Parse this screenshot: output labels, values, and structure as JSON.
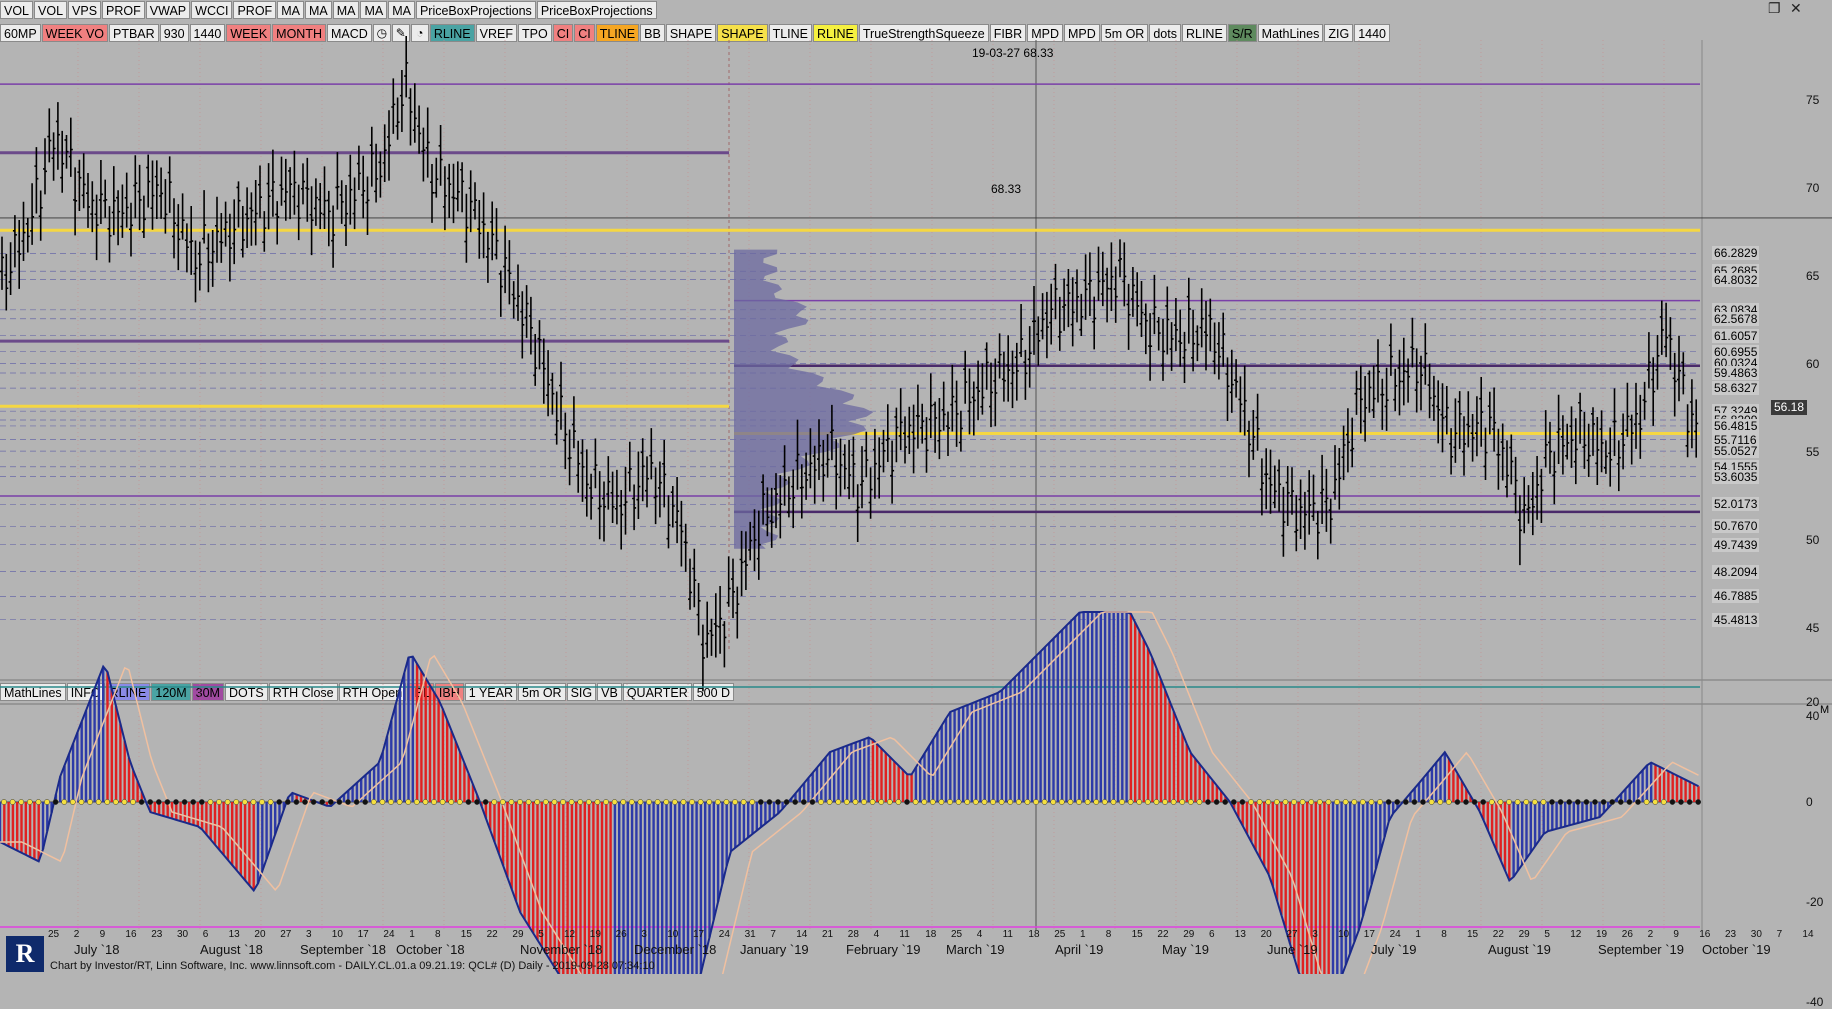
{
  "toolbar_top": [
    {
      "label": "VOL",
      "color": "#ececec"
    },
    {
      "label": "VOL",
      "color": "#ececec"
    },
    {
      "label": "VPS",
      "color": "#ececec"
    },
    {
      "label": "PROF",
      "color": "#ececec"
    },
    {
      "label": "VWAP",
      "color": "#ececec"
    },
    {
      "label": "WCCI",
      "color": "#ececec"
    },
    {
      "label": "PROF",
      "color": "#ececec"
    },
    {
      "label": "MA",
      "color": "#ececec"
    },
    {
      "label": "MA",
      "color": "#ececec"
    },
    {
      "label": "MA",
      "color": "#ececec"
    },
    {
      "label": "MA",
      "color": "#ececec"
    },
    {
      "label": "MA",
      "color": "#ececec"
    },
    {
      "label": "PriceBoxProjections",
      "color": "#ececec"
    },
    {
      "label": "PriceBoxProjections",
      "color": "#ececec"
    }
  ],
  "toolbar_second": [
    {
      "label": "60MP",
      "color": "#ececec"
    },
    {
      "label": "WEEK VO",
      "color": "#f08080"
    },
    {
      "label": "PTBAR",
      "color": "#ececec"
    },
    {
      "label": "930",
      "color": "#ececec"
    },
    {
      "label": "1440",
      "color": "#ececec"
    },
    {
      "label": "WEEK",
      "color": "#f08080"
    },
    {
      "label": "MONTH",
      "color": "#f08080"
    },
    {
      "label": "MACD",
      "color": "#ececec"
    },
    {
      "icon": "clock-icon",
      "glyph": "◷",
      "color": "#ececec"
    },
    {
      "icon": "pencil-icon",
      "glyph": "✎",
      "color": "#ececec"
    },
    {
      "icon": "globe-icon",
      "glyph": "◔",
      "color": "#ececec"
    },
    {
      "label": "RLINE",
      "color": "#4aa3a3"
    },
    {
      "label": "VREF",
      "color": "#ececec"
    },
    {
      "label": "TPO",
      "color": "#ececec"
    },
    {
      "label": "CI",
      "color": "#f08080"
    },
    {
      "label": "CI",
      "color": "#f08080"
    },
    {
      "label": "TLINE",
      "color": "#f5a623"
    },
    {
      "label": "BB",
      "color": "#ececec"
    },
    {
      "label": "SHAPE",
      "color": "#ececec"
    },
    {
      "label": "SHAPE",
      "color": "#f5e04a"
    },
    {
      "label": "TLINE",
      "color": "#ececec"
    },
    {
      "label": "RLINE",
      "color": "#f5f040"
    },
    {
      "label": "TrueStrengthSqueeze",
      "color": "#ececec"
    },
    {
      "label": "FIBR",
      "color": "#ececec"
    },
    {
      "label": "MPD",
      "color": "#ececec"
    },
    {
      "label": "MPD",
      "color": "#ececec"
    },
    {
      "label": "5m OR",
      "color": "#ececec"
    },
    {
      "label": "dots",
      "color": "#ececec"
    },
    {
      "label": "RLINE",
      "color": "#ececec"
    },
    {
      "label": "S/R",
      "color": "#5e8a5e"
    },
    {
      "label": "MathLines",
      "color": "#ececec"
    },
    {
      "label": "ZIG",
      "color": "#ececec"
    },
    {
      "label": "1440",
      "color": "#ececec"
    }
  ],
  "toolbar_mid": [
    {
      "label": "MathLines",
      "color": "#ececec"
    },
    {
      "label": "INFO",
      "color": "#ececec"
    },
    {
      "label": "RLINE",
      "color": "#8a8ae6"
    },
    {
      "label": "120M",
      "color": "#4aa3a3"
    },
    {
      "label": "30M",
      "color": "#a14aa1"
    },
    {
      "label": "DOTS",
      "color": "#ececec"
    },
    {
      "label": "RTH Close",
      "color": "#ececec"
    },
    {
      "label": "RTH Open",
      "color": "#ececec"
    },
    {
      "label": "IBL",
      "color": "#f08080"
    },
    {
      "label": "IBH",
      "color": "#f08080"
    },
    {
      "label": "1 YEAR",
      "color": "#ececec"
    },
    {
      "label": "5m OR",
      "color": "#ececec"
    },
    {
      "label": "SIG",
      "color": "#ececec"
    },
    {
      "label": "VB",
      "color": "#ececec"
    },
    {
      "label": "QUARTER",
      "color": "#ececec"
    },
    {
      "label": "500 D",
      "color": "#ececec"
    }
  ],
  "crosshair": {
    "date": "19-03-27",
    "price": "68.33"
  },
  "crosshair_line_label": "68.33",
  "current_price": "56.18",
  "price_axis_ticks": [
    "75",
    "70",
    "65",
    "60",
    "55",
    "50",
    "45",
    "40"
  ],
  "level_labels": [
    "66.2829",
    "65.2685",
    "64.8032",
    "63.0834",
    "62.5678",
    "61.6057",
    "60.6955",
    "60.0324",
    "59.4863",
    "58.6327",
    "57.3249",
    "56.8209",
    "56.4815",
    "55.7116",
    "55.0527",
    "54.1555",
    "53.6035",
    "52.0173",
    "50.7670",
    "49.7439",
    "48.2094",
    "46.7885",
    "45.4813"
  ],
  "macd_axis_ticks": [
    "20",
    "0",
    "-20",
    "-40"
  ],
  "x_day_ticks": [
    "25",
    "2",
    "9",
    "16",
    "23",
    "30",
    "6",
    "13",
    "20",
    "27",
    "3",
    "10",
    "17",
    "24",
    "1",
    "8",
    "15",
    "22",
    "29",
    "5",
    "12",
    "19",
    "26",
    "3",
    "10",
    "17",
    "24",
    "31",
    "7",
    "14",
    "21",
    "28",
    "4",
    "11",
    "18",
    "25",
    "4",
    "11",
    "18",
    "25",
    "1",
    "8",
    "15",
    "22",
    "29",
    "6",
    "13",
    "20",
    "27",
    "3",
    "10",
    "17",
    "24",
    "1",
    "8",
    "15",
    "22",
    "29",
    "5",
    "12",
    "19",
    "26",
    "2",
    "9",
    "16",
    "23",
    "30",
    "7",
    "14",
    "21",
    "28"
  ],
  "x_months": [
    "July `18",
    "August `18",
    "September `18",
    "October `18",
    "November `18",
    "December `18",
    "January `19",
    "February `19",
    "March `19",
    "April `19",
    "May `19",
    "June `19",
    "July `19",
    "August `19",
    "September `19",
    "October `19"
  ],
  "footer_text": "Chart by Investor/RT, Linn Software, Inc. www.linnsoft.com - DAILY.CL.01.a     09.21.19: QCL# (D) Daily - 2019-09-28 07:34:10",
  "logo_letter": "R",
  "corner_tag": "M",
  "window_controls": {
    "restore": "❐",
    "close": "✕"
  }
}
